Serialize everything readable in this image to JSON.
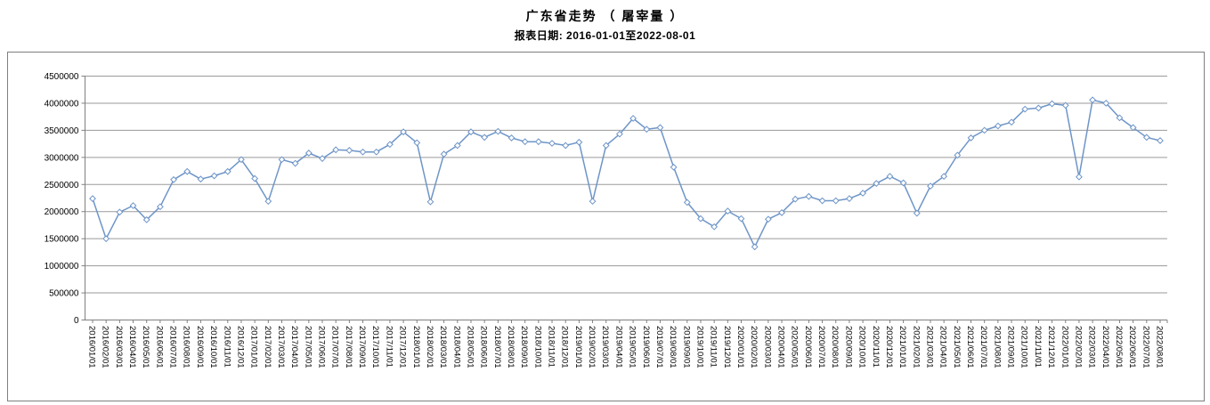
{
  "header": {
    "title": "广东省走势 （ 屠宰量 ）",
    "subtitle": "报表日期: 2016-01-01至2022-08-01"
  },
  "chart_data": {
    "type": "line",
    "title": "广东省走势 （ 屠宰量 ）",
    "subtitle": "报表日期: 2016-01-01至2022-08-01",
    "legend": "none",
    "grid": true,
    "marker": "diamond",
    "line_color": "#6e95c8",
    "grid_color": "#9a9a9a",
    "axis_color": "#808080",
    "frame_color": "#7f7f7f",
    "ylim": [
      0,
      4500000
    ],
    "yticks": [
      0,
      500000,
      1000000,
      1500000,
      2000000,
      2500000,
      3000000,
      3500000,
      4000000,
      4500000
    ],
    "x": [
      "2016/01/01",
      "2016/02/01",
      "2016/03/01",
      "2016/04/01",
      "2016/05/01",
      "2016/06/01",
      "2016/07/01",
      "2016/08/01",
      "2016/09/01",
      "2016/10/01",
      "2016/11/01",
      "2016/12/01",
      "2017/01/01",
      "2017/02/01",
      "2017/03/01",
      "2017/04/01",
      "2017/05/01",
      "2017/06/01",
      "2017/07/01",
      "2017/08/01",
      "2017/09/01",
      "2017/10/01",
      "2017/11/01",
      "2017/12/01",
      "2018/01/01",
      "2018/02/01",
      "2018/03/01",
      "2018/04/01",
      "2018/05/01",
      "2018/06/01",
      "2018/07/01",
      "2018/08/01",
      "2018/09/01",
      "2018/10/01",
      "2018/11/01",
      "2018/12/01",
      "2019/01/01",
      "2019/02/01",
      "2019/03/01",
      "2019/04/01",
      "2019/05/01",
      "2019/06/01",
      "2019/07/01",
      "2019/08/01",
      "2019/09/01",
      "2019/10/01",
      "2019/11/01",
      "2019/12/01",
      "2020/01/01",
      "2020/02/01",
      "2020/03/01",
      "2020/04/01",
      "2020/05/01",
      "2020/06/01",
      "2020/07/01",
      "2020/08/01",
      "2020/09/01",
      "2020/10/01",
      "2020/11/01",
      "2020/12/01",
      "2021/01/01",
      "2021/02/01",
      "2021/03/01",
      "2021/04/01",
      "2021/05/01",
      "2021/06/01",
      "2021/07/01",
      "2021/08/01",
      "2021/09/01",
      "2021/10/01",
      "2021/11/01",
      "2021/12/01",
      "2022/01/01",
      "2022/02/01",
      "2022/03/01",
      "2022/04/01",
      "2022/05/01",
      "2022/06/01",
      "2022/07/01",
      "2022/08/01"
    ],
    "series": [
      {
        "name": "屠宰量",
        "values": [
          2240000,
          1500000,
          1990000,
          2110000,
          1850000,
          2090000,
          2590000,
          2740000,
          2600000,
          2660000,
          2740000,
          2960000,
          2610000,
          2190000,
          2960000,
          2890000,
          3080000,
          2980000,
          3140000,
          3130000,
          3100000,
          3100000,
          3240000,
          3470000,
          3270000,
          2180000,
          3060000,
          3220000,
          3470000,
          3370000,
          3480000,
          3360000,
          3290000,
          3290000,
          3260000,
          3220000,
          3280000,
          2190000,
          3220000,
          3430000,
          3720000,
          3520000,
          3550000,
          2820000,
          2170000,
          1870000,
          1720000,
          2010000,
          1870000,
          1350000,
          1860000,
          1980000,
          2230000,
          2280000,
          2200000,
          2200000,
          2240000,
          2340000,
          2520000,
          2650000,
          2530000,
          1970000,
          2470000,
          2650000,
          3040000,
          3360000,
          3500000,
          3580000,
          3650000,
          3890000,
          3910000,
          3990000,
          3960000,
          2640000,
          4060000,
          4000000,
          3730000,
          3550000,
          3370000,
          3310000
        ]
      }
    ]
  }
}
